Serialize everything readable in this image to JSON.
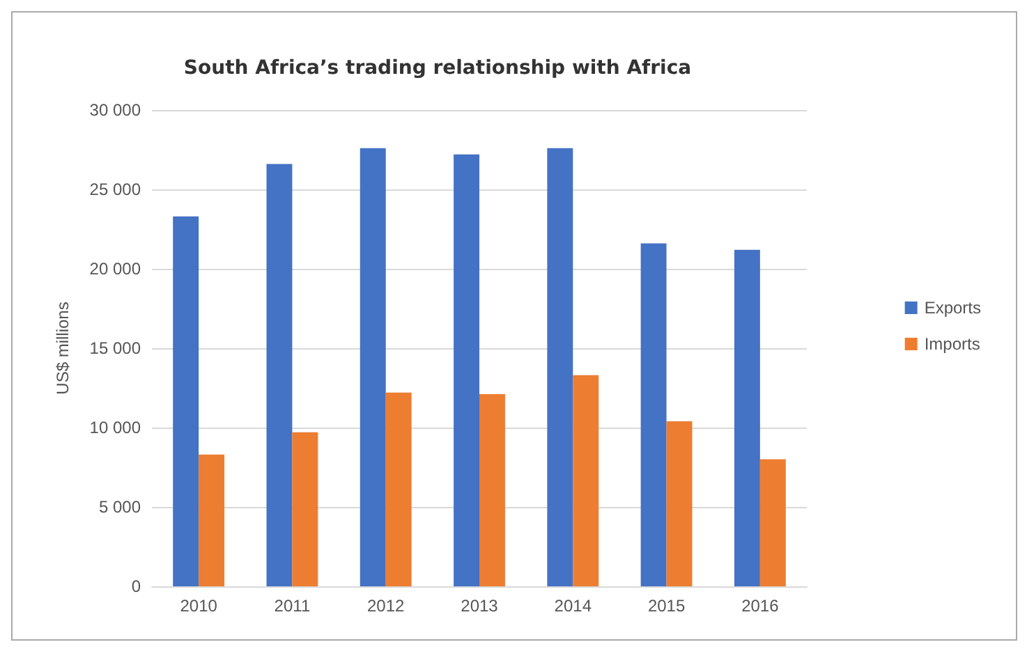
{
  "chart_data": {
    "type": "bar",
    "title": "South Africa’s trading relationship with Africa",
    "ylabel": "US$ millions",
    "categories": [
      "2010",
      "2011",
      "2012",
      "2013",
      "2014",
      "2015",
      "2016"
    ],
    "series": [
      {
        "name": "Exports",
        "color": "#4472c4",
        "values": [
          23300,
          26600,
          27600,
          27200,
          27600,
          21600,
          21200
        ]
      },
      {
        "name": "Imports",
        "color": "#ed7d31",
        "values": [
          8300,
          9700,
          12200,
          12100,
          13300,
          10400,
          8000
        ]
      }
    ],
    "ylim": [
      0,
      30000
    ],
    "yticks": [
      0,
      {
        "value": 5000,
        "label": "5 000"
      },
      {
        "value": 10000,
        "label": "10 000"
      },
      {
        "value": 15000,
        "label": "15 000"
      },
      {
        "value": 20000,
        "label": "20 000"
      },
      {
        "value": 25000,
        "label": "25 000"
      },
      {
        "value": 30000,
        "label": "30 000"
      }
    ],
    "grid": "y",
    "legend": "right"
  }
}
